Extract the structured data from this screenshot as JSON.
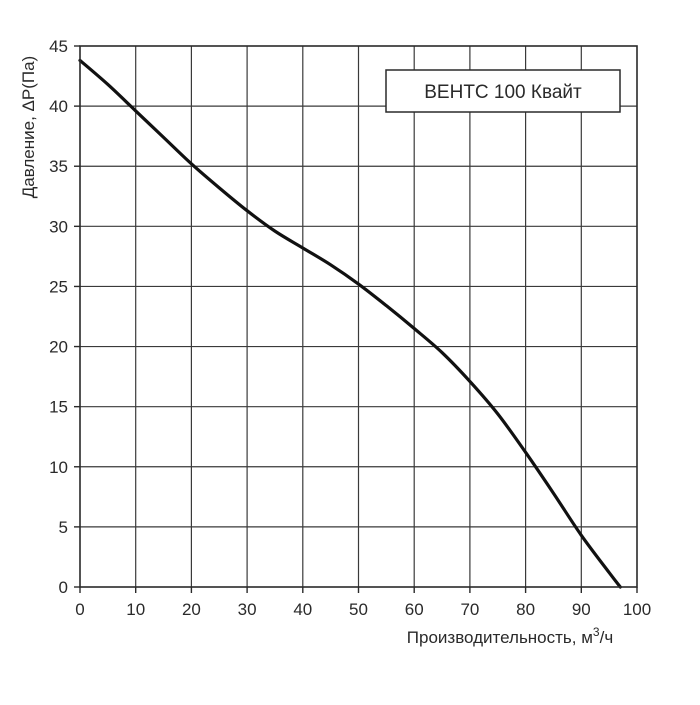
{
  "chart_data": {
    "type": "line",
    "xlabel": "Производительность, м",
    "xlabel_sup": "3",
    "xlabel_suffix": "/ч",
    "ylabel": "Давление, ΔP(Па)",
    "xlim": [
      0,
      100
    ],
    "ylim": [
      0,
      45
    ],
    "x_ticks": [
      0,
      10,
      20,
      30,
      40,
      50,
      60,
      70,
      80,
      90,
      100
    ],
    "y_ticks": [
      0,
      5,
      10,
      15,
      20,
      25,
      30,
      35,
      40,
      45
    ],
    "grid": true,
    "legend_position": "top-right",
    "series": [
      {
        "name": "ВЕНТС 100 Квайт",
        "color": "#111111",
        "x": [
          0,
          5,
          10,
          15,
          20,
          25,
          30,
          35,
          40,
          45,
          50,
          55,
          60,
          65,
          70,
          75,
          80,
          85,
          90,
          95,
          97
        ],
        "y": [
          43.8,
          41.8,
          39.6,
          37.4,
          35.2,
          33.2,
          31.3,
          29.6,
          28.2,
          26.8,
          25.2,
          23.4,
          21.5,
          19.5,
          17.1,
          14.4,
          11.2,
          7.8,
          4.3,
          1.2,
          0
        ]
      }
    ]
  }
}
